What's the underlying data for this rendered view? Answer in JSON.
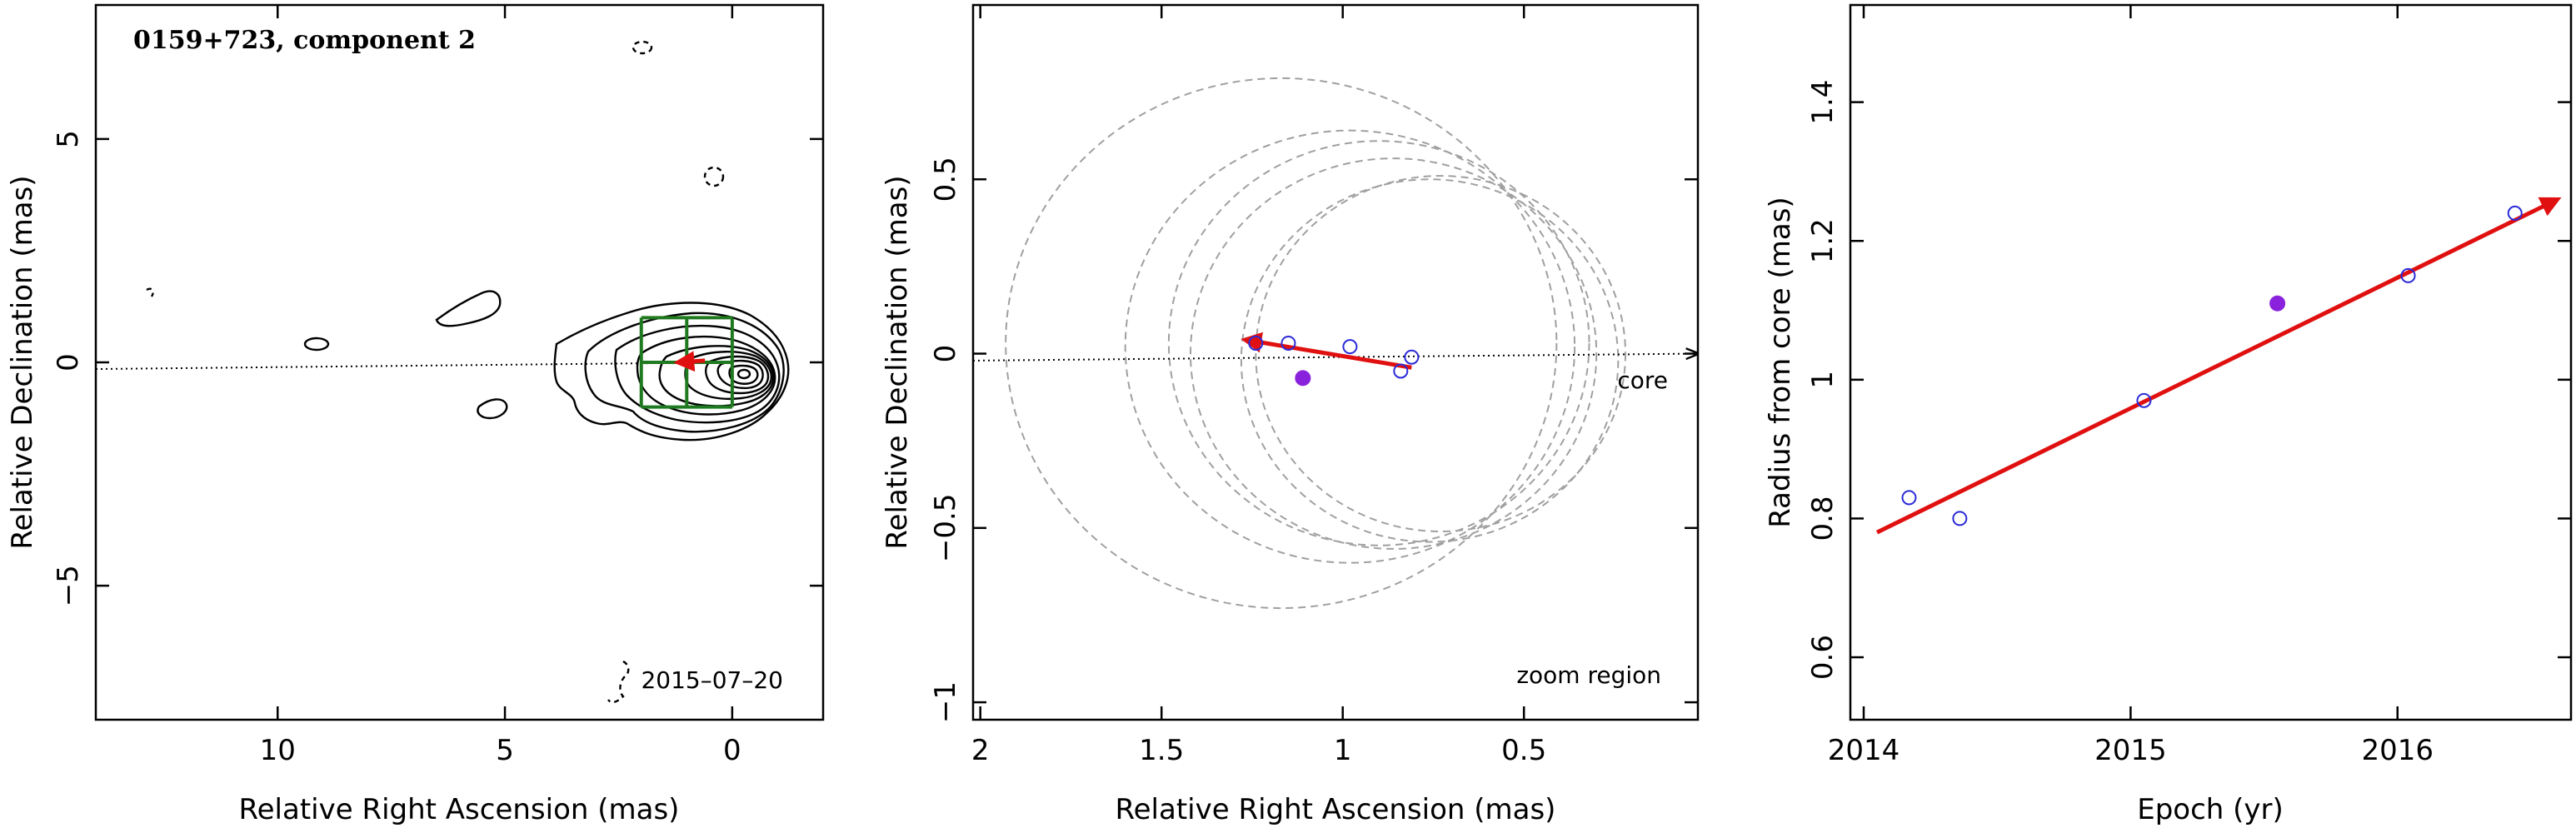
{
  "figure": {
    "colors": {
      "contour": "#000000",
      "grid_box": "#1f7a1f",
      "fit_arrow": "#e01010",
      "open_marker": "#2a2ad8",
      "filled_marker": "#8a22dd",
      "beam_circle": "#a0a0a0",
      "dotted_line": "#000000"
    }
  },
  "chart_data": [
    {
      "type": "contour",
      "panel": "left",
      "title": "0159+723, component 2",
      "date_label": "2015–07–20",
      "xlabel": "Relative Right Ascension (mas)",
      "ylabel": "Relative Declination (mas)",
      "xlim": [
        14,
        -2
      ],
      "ylim": [
        -8,
        8
      ],
      "x_ticks": [
        10,
        5,
        0
      ],
      "y_ticks": [
        5,
        0,
        -5
      ],
      "x_tick_labels": [
        "10",
        "5",
        "0"
      ],
      "y_tick_labels": [
        "5",
        "0",
        "−5"
      ],
      "core_axis_line": {
        "x": [
          14,
          0
        ],
        "y": [
          -0.15,
          0
        ]
      },
      "zoom_box": {
        "x_range": [
          2,
          0
        ],
        "y_range": [
          -1,
          1
        ],
        "grid_x": [
          2,
          1,
          0
        ],
        "grid_y": [
          1,
          0,
          -1
        ]
      },
      "contour_levels": 9,
      "fit_arrow": {
        "x": [
          0.6,
          1.2
        ],
        "y": [
          0.04,
          0.0
        ]
      },
      "grid": false
    },
    {
      "type": "scatter",
      "panel": "middle",
      "annotation_core": "core",
      "annotation_zoom": "zoom region",
      "xlabel": "Relative Right Ascension (mas)",
      "ylabel": "Relative Declination (mas)",
      "xlim": [
        2.02,
        0.02
      ],
      "ylim": [
        -1.05,
        1.0
      ],
      "x_ticks": [
        2,
        1.5,
        1,
        0.5
      ],
      "y_ticks": [
        0.5,
        0,
        -0.5,
        -1
      ],
      "x_tick_labels": [
        "2",
        "1.5",
        "1",
        "0.5"
      ],
      "y_tick_labels": [
        "0.5",
        "0",
        "−0.5",
        "−1"
      ],
      "open_points": [
        {
          "x": 1.24,
          "y": 0.03
        },
        {
          "x": 1.15,
          "y": 0.03
        },
        {
          "x": 0.98,
          "y": 0.02
        },
        {
          "x": 0.84,
          "y": -0.05
        },
        {
          "x": 0.81,
          "y": -0.01
        }
      ],
      "filled_points": [
        {
          "x": 1.11,
          "y": -0.07
        }
      ],
      "fit_arrow": {
        "x": [
          0.81,
          1.27
        ],
        "y": [
          -0.04,
          0.04
        ]
      },
      "core_axis_line": {
        "x": [
          2.02,
          0.02
        ],
        "y": [
          -0.02,
          0.0
        ]
      },
      "beam_circles": [
        {
          "cx": 1.17,
          "cy": 0.03,
          "r": 0.76
        },
        {
          "cx": 0.98,
          "cy": 0.02,
          "r": 0.62
        },
        {
          "cx": 0.9,
          "cy": 0.03,
          "r": 0.58
        },
        {
          "cx": 0.86,
          "cy": 0.0,
          "r": 0.56
        },
        {
          "cx": 0.76,
          "cy": -0.02,
          "r": 0.52
        },
        {
          "cx": 0.73,
          "cy": 0.0,
          "r": 0.51
        }
      ],
      "grid": false
    },
    {
      "type": "scatter",
      "panel": "right",
      "xlabel": "Epoch (yr)",
      "ylabel": "Radius from core (mas)",
      "xlim": [
        2013.95,
        2016.65
      ],
      "ylim": [
        0.51,
        1.54
      ],
      "x_ticks": [
        2014,
        2015,
        2016
      ],
      "y_ticks": [
        0.6,
        0.8,
        1.0,
        1.2,
        1.4
      ],
      "x_tick_labels": [
        "2014",
        "2015",
        "2016"
      ],
      "y_tick_labels": [
        "0.6",
        "0.8",
        "1",
        "1.2",
        "1.4"
      ],
      "open_points": [
        {
          "x": 2014.17,
          "y": 0.83
        },
        {
          "x": 2014.36,
          "y": 0.8
        },
        {
          "x": 2015.05,
          "y": 0.97
        },
        {
          "x": 2016.04,
          "y": 1.15
        },
        {
          "x": 2016.44,
          "y": 1.24
        }
      ],
      "filled_points": [
        {
          "x": 2015.55,
          "y": 1.11
        }
      ],
      "fit_arrow": {
        "x": [
          2014.05,
          2016.6
        ],
        "y": [
          0.78,
          1.26
        ]
      },
      "grid": false
    }
  ]
}
